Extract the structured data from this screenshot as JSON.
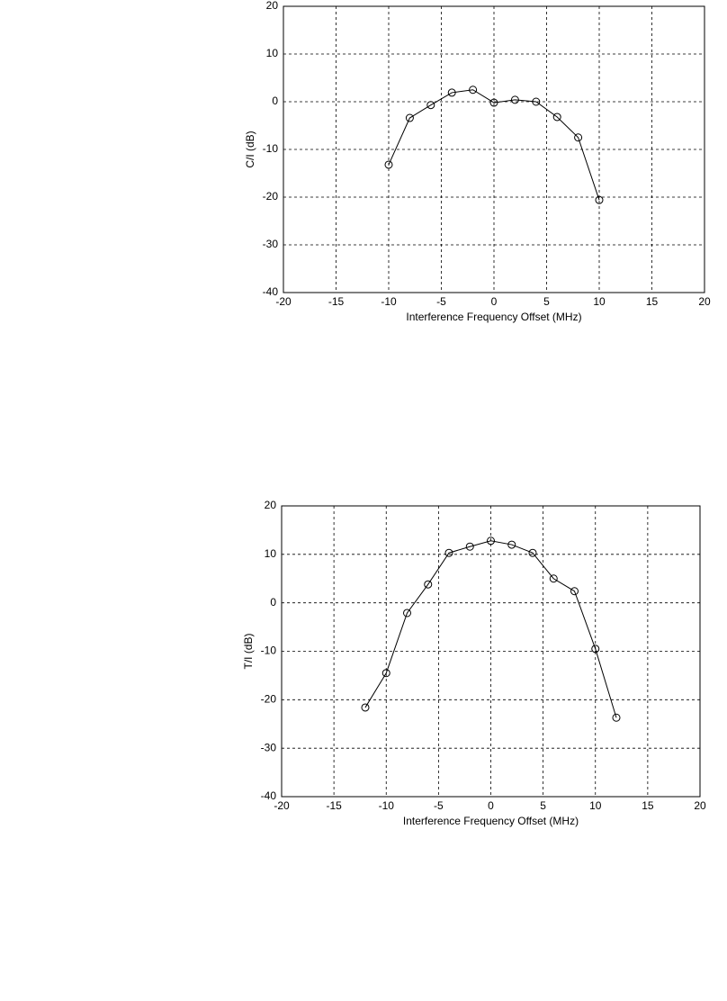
{
  "chart_data": [
    {
      "type": "line",
      "ylabel": "C/I (dB)",
      "xlabel": "Interference Frequency Offset (MHz)",
      "x": [
        -10,
        -8,
        -6,
        -4,
        -2,
        0,
        2,
        4,
        6,
        8,
        10
      ],
      "series": [
        {
          "color": "#000000",
          "values": [
            -13.2,
            -3.4,
            -0.7,
            1.9,
            2.5,
            -0.2,
            0.4,
            0,
            -3.2,
            -7.5,
            -20.6
          ]
        }
      ],
      "xlim": [
        -20,
        20
      ],
      "xticks": [
        -20,
        -15,
        -10,
        -5,
        0,
        5,
        10,
        15,
        20
      ],
      "ylim": [
        -40,
        20
      ],
      "yticks": [
        -40,
        -30,
        -20,
        -10,
        0,
        10,
        20
      ],
      "grid": true
    },
    {
      "type": "line",
      "ylabel": "T/I (dB)",
      "xlabel": "Interference Frequency Offset (MHz)",
      "x": [
        -12,
        -10,
        -8,
        -6,
        -4,
        -2,
        0,
        2,
        4,
        6,
        8,
        10,
        12
      ],
      "series": [
        {
          "color": "#000000",
          "values": [
            -21.6,
            -14.5,
            -2.1,
            3.8,
            10.3,
            11.6,
            12.8,
            12,
            10.3,
            5,
            2.4,
            -9.5,
            -23.7
          ]
        }
      ],
      "xlim": [
        -20,
        20
      ],
      "xticks": [
        -20,
        -15,
        -10,
        -5,
        0,
        5,
        10,
        15,
        20
      ],
      "ylim": [
        -40,
        20
      ],
      "yticks": [
        -40,
        -30,
        -20,
        -10,
        0,
        10,
        20
      ],
      "grid": true
    }
  ]
}
